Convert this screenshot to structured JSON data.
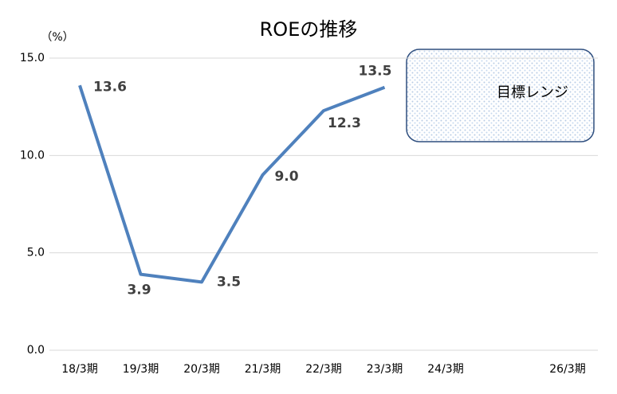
{
  "chart_data": {
    "type": "line",
    "title": "ROEの推移",
    "y_unit": "（%）",
    "categories": [
      "18/3期",
      "19/3期",
      "20/3期",
      "21/3期",
      "22/3期",
      "23/3期",
      "24/3期",
      null,
      "26/3期"
    ],
    "series": [
      {
        "name": "ROE",
        "color": "#4f81bd",
        "values": [
          13.6,
          3.9,
          3.5,
          9.0,
          12.3,
          13.5,
          null,
          null,
          null
        ],
        "value_labels": [
          "13.6",
          "3.9",
          "3.5",
          "9.0",
          "12.3",
          "13.5",
          null,
          null,
          null
        ]
      }
    ],
    "ylim": [
      0,
      15
    ],
    "yticks": [
      {
        "value": 0,
        "label": "0.0"
      },
      {
        "value": 5,
        "label": "5.0"
      },
      {
        "value": 10,
        "label": "10.0"
      },
      {
        "value": 15,
        "label": "15.0"
      }
    ],
    "grid": true,
    "annotation": "目標レンジ"
  }
}
